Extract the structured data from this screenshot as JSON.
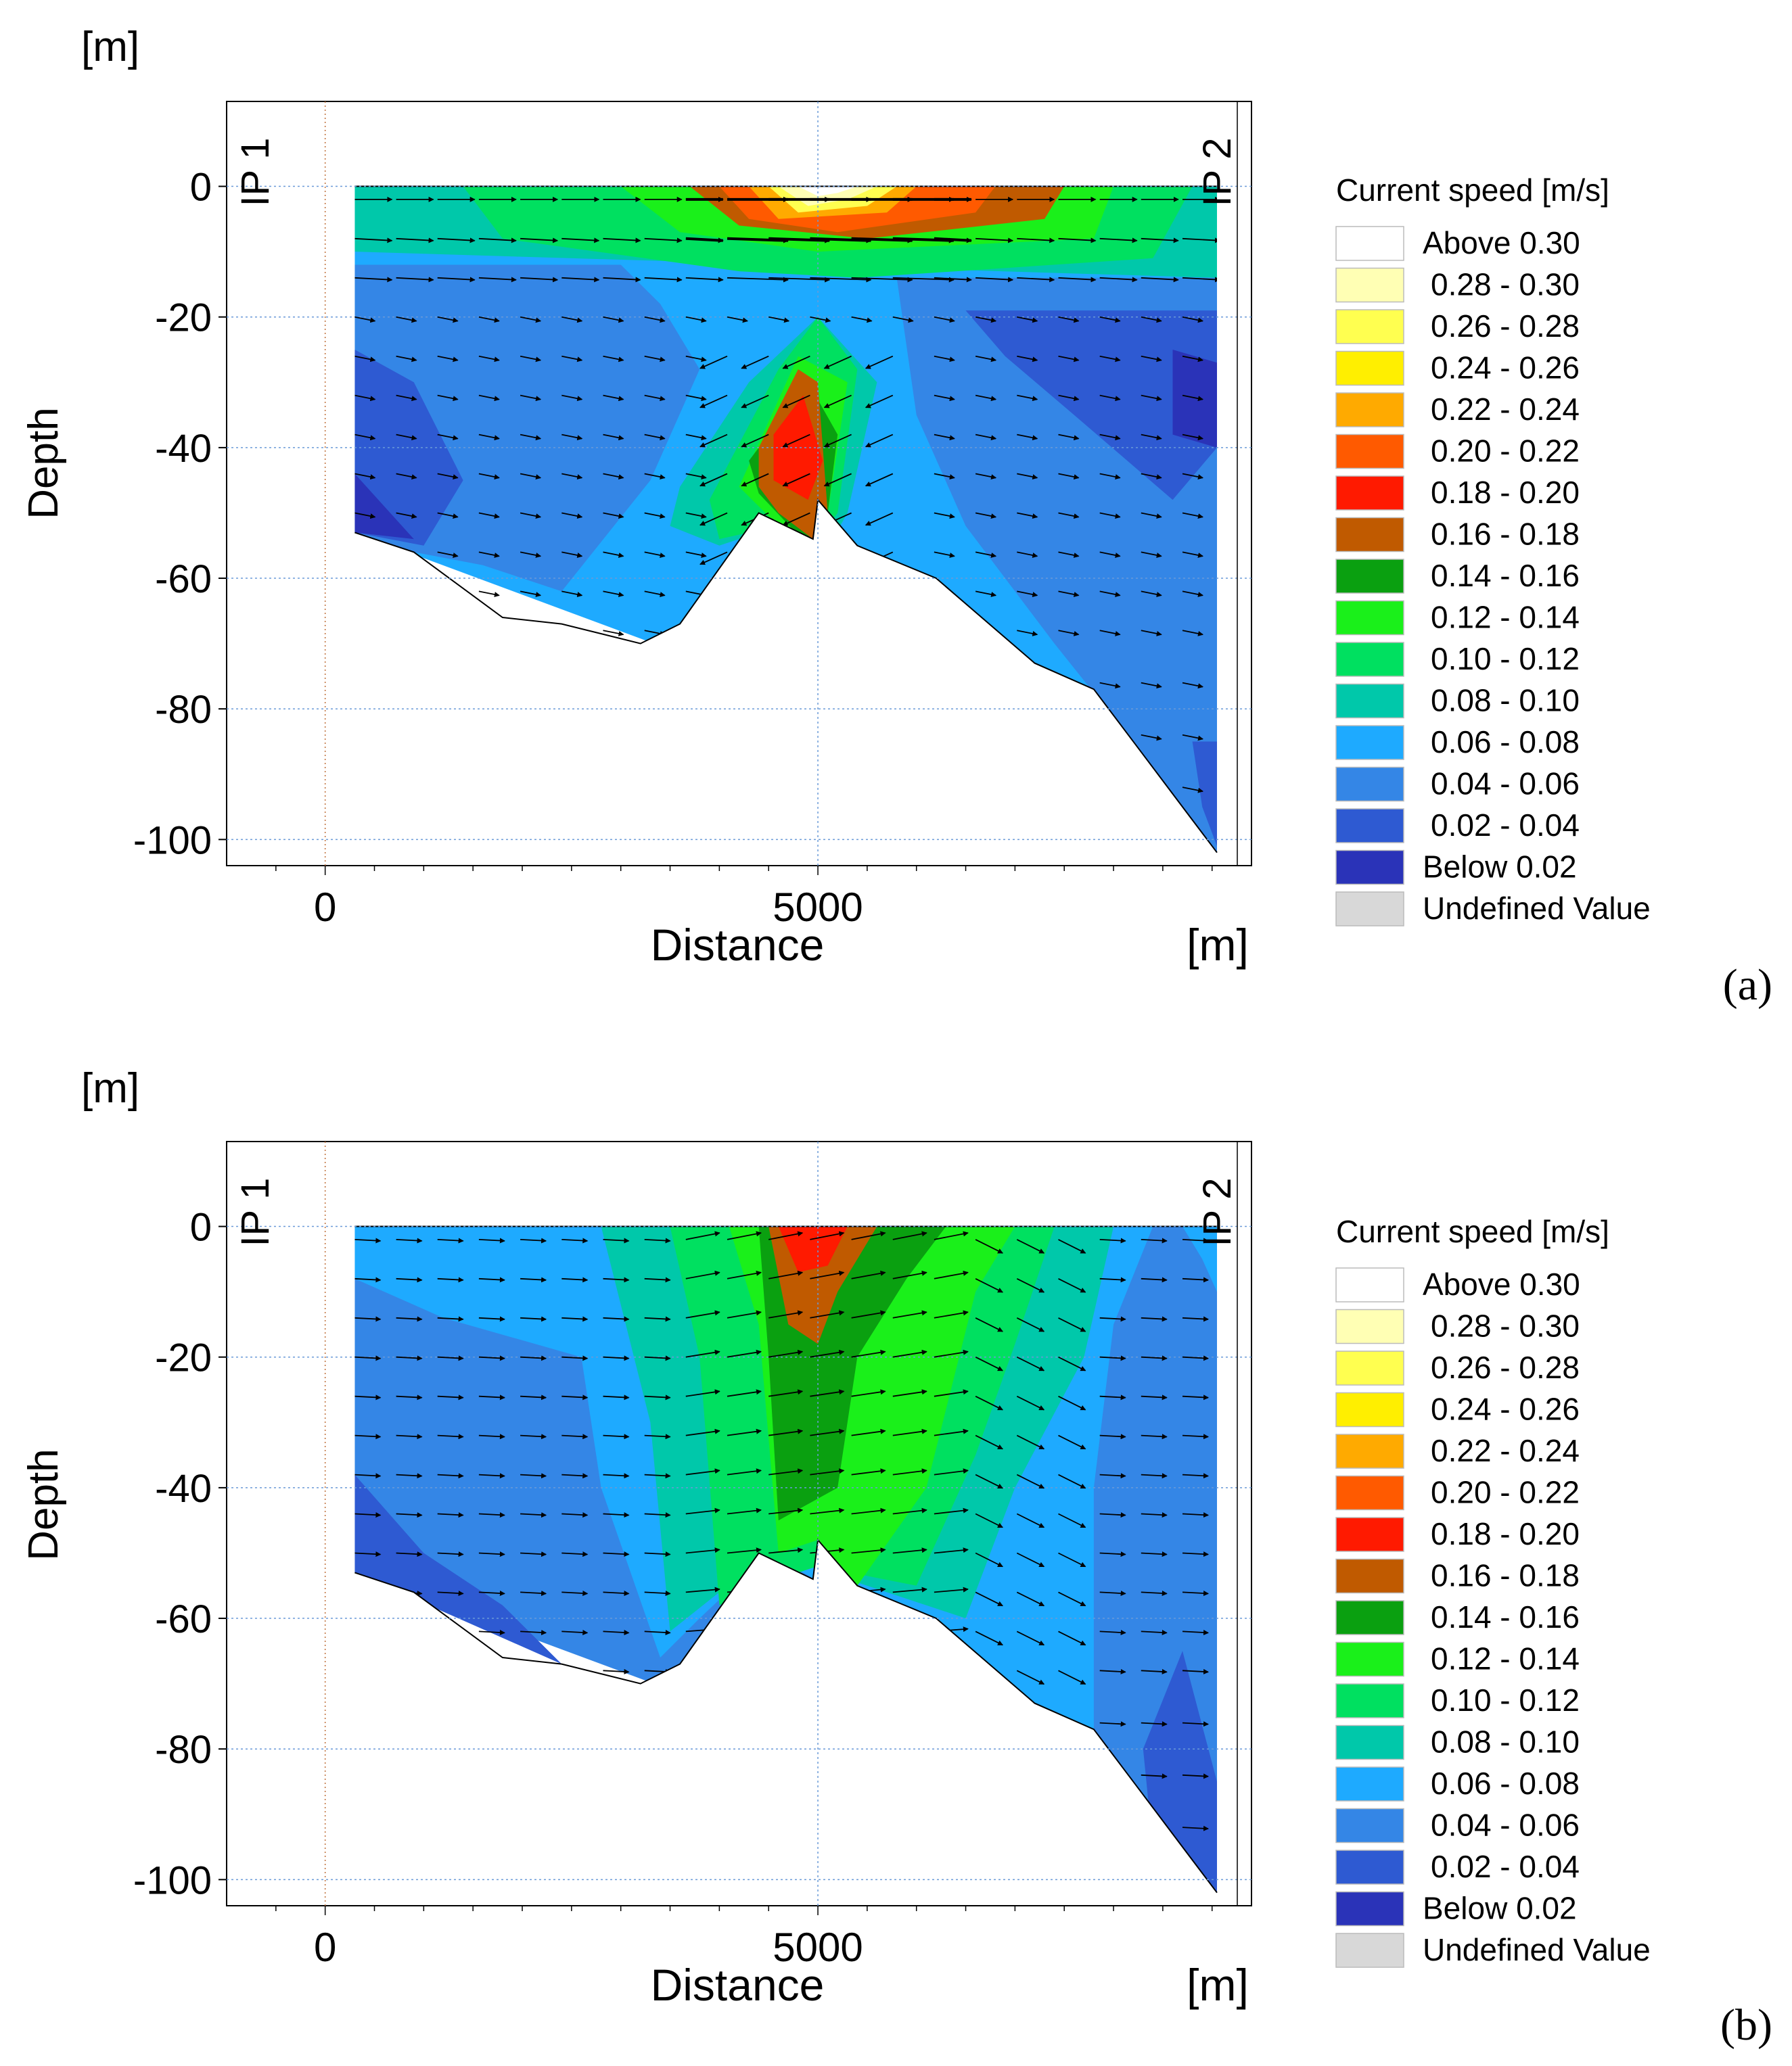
{
  "legend": {
    "title": "Current speed [m/s]",
    "classes": [
      {
        "label": "Above 0.30",
        "color": "#ffffff"
      },
      {
        "label": "0.28 - 0.30",
        "color": "#ffffb4"
      },
      {
        "label": "0.26 - 0.28",
        "color": "#ffff50"
      },
      {
        "label": "0.24 - 0.26",
        "color": "#ffef00"
      },
      {
        "label": "0.22 - 0.24",
        "color": "#ffaa00"
      },
      {
        "label": "0.20 - 0.22",
        "color": "#ff5a00"
      },
      {
        "label": "0.18 - 0.20",
        "color": "#ff1a00"
      },
      {
        "label": "0.16 - 0.18",
        "color": "#c05a00"
      },
      {
        "label": "0.14 - 0.16",
        "color": "#0aa010"
      },
      {
        "label": "0.12 - 0.14",
        "color": "#1af01a"
      },
      {
        "label": "0.10 - 0.12",
        "color": "#00e060"
      },
      {
        "label": "0.08 - 0.10",
        "color": "#00c8aa"
      },
      {
        "label": "0.06 - 0.08",
        "color": "#1eaaff"
      },
      {
        "label": "0.04 - 0.06",
        "color": "#3486e6"
      },
      {
        "label": "0.02 - 0.04",
        "color": "#2e5ad2"
      },
      {
        "label": "Below 0.02",
        "color": "#2a33b8"
      },
      {
        "label": "Undefined Value",
        "color": "#d8d8d8"
      }
    ]
  },
  "chart_data": [
    {
      "type": "heatmap",
      "panel": "(a)",
      "title": "",
      "xlabel": "Distance",
      "ylabel": "Depth",
      "x_unit": "[m]",
      "y_unit": "[m]",
      "xlim": [
        -1000,
        9400
      ],
      "ylim": [
        -104,
        13
      ],
      "x_ticks": [
        0,
        5000
      ],
      "y_ticks": [
        0,
        -20,
        -40,
        -60,
        -80,
        -100
      ],
      "grid": true,
      "annotations": [
        "IP 1",
        "IP 2"
      ],
      "bathymetry": {
        "distance": [
          300,
          300,
          900,
          1800,
          2400,
          3200,
          3600,
          4400,
          4950,
          5000,
          5400,
          6200,
          7200,
          7800,
          8300,
          8700,
          9050,
          9050
        ],
        "depth": [
          0,
          -53,
          -56,
          -66,
          -67,
          -70,
          -67,
          -50,
          -54,
          -48,
          -55,
          -60,
          -73,
          -77,
          -87,
          -95,
          -102,
          0
        ]
      },
      "contours": [
        {
          "class": "0.06 - 0.08",
          "distance": [
            300,
            9050,
            9050,
            300
          ],
          "depth": [
            0,
            0,
            -102,
            -53
          ]
        },
        {
          "class": "0.04 - 0.06",
          "distance": [
            300,
            3000,
            3400,
            3800,
            3300,
            2400,
            1600,
            900,
            300
          ],
          "depth": [
            -12,
            -12,
            -18,
            -28,
            -45,
            -62,
            -58,
            -56,
            -53
          ]
        },
        {
          "class": "0.04 - 0.06",
          "distance": [
            5800,
            9050,
            9050,
            8300,
            7400,
            6500,
            6000
          ],
          "depth": [
            -14,
            -14,
            -102,
            -87,
            -70,
            -52,
            -35
          ]
        },
        {
          "class": "0.02 - 0.04",
          "distance": [
            300,
            900,
            1400,
            1000,
            300
          ],
          "depth": [
            -25,
            -30,
            -45,
            -55,
            -53
          ]
        },
        {
          "class": "0.02 - 0.04",
          "distance": [
            6500,
            9050,
            9050,
            8600,
            7600,
            6900
          ],
          "depth": [
            -19,
            -19,
            -40,
            -48,
            -35,
            -26
          ]
        },
        {
          "class": "Below 0.02",
          "distance": [
            300,
            900,
            300
          ],
          "depth": [
            -44,
            -54,
            -53
          ]
        },
        {
          "class": "Below 0.02",
          "distance": [
            8600,
            9050,
            9050,
            8600
          ],
          "depth": [
            -25,
            -27,
            -40,
            -38
          ]
        },
        {
          "class": "0.02 - 0.04",
          "distance": [
            8800,
            9050,
            9050,
            8900
          ],
          "depth": [
            -85,
            -85,
            -101,
            -95
          ]
        },
        {
          "class": "0.08 - 0.10",
          "distance": [
            300,
            9050,
            9050,
            300
          ],
          "depth": [
            0,
            0,
            -14,
            -10
          ]
        },
        {
          "class": "0.08 - 0.10",
          "distance": [
            3600,
            4300,
            5000,
            5600,
            5300,
            5000,
            4600,
            4000,
            3500
          ],
          "depth": [
            -46,
            -30,
            -20,
            -30,
            -50,
            -58,
            -52,
            -55,
            -52
          ]
        },
        {
          "class": "0.10 - 0.12",
          "distance": [
            1400,
            8800,
            8400,
            5400,
            4200,
            1800
          ],
          "depth": [
            0,
            0,
            -11,
            -14,
            -13,
            -8
          ]
        },
        {
          "class": "0.10 - 0.12",
          "distance": [
            3900,
            4600,
            5000,
            5400,
            5200,
            4950,
            4600,
            4000
          ],
          "depth": [
            -48,
            -28,
            -20,
            -28,
            -50,
            -55,
            -52,
            -54
          ]
        },
        {
          "class": "0.12 - 0.14",
          "distance": [
            3000,
            8000,
            7800,
            5000,
            3600
          ],
          "depth": [
            0,
            0,
            -8,
            -10,
            -7
          ]
        },
        {
          "class": "0.12 - 0.14",
          "distance": [
            4200,
            4800,
            5300,
            5100,
            4900,
            4600
          ],
          "depth": [
            -46,
            -26,
            -30,
            -50,
            -55,
            -52
          ]
        },
        {
          "class": "0.14 - 0.16",
          "distance": [
            4300,
            4900,
            5200,
            5100,
            4900,
            4400
          ],
          "depth": [
            -42,
            -30,
            -38,
            -50,
            -55,
            -47
          ]
        },
        {
          "class": "0.16 - 0.18",
          "distance": [
            3700,
            7500,
            7300,
            5500,
            4200
          ],
          "depth": [
            0,
            0,
            -5,
            -8,
            -6
          ]
        },
        {
          "class": "0.16 - 0.18",
          "distance": [
            4400,
            4800,
            5000,
            5100,
            4950,
            4600,
            4400
          ],
          "depth": [
            -40,
            -28,
            -30,
            -50,
            -54,
            -50,
            -46
          ]
        },
        {
          "class": "0.18 - 0.20",
          "distance": [
            4550,
            4850,
            5050,
            4900,
            4550
          ],
          "depth": [
            -38,
            -32,
            -42,
            -48,
            -45
          ]
        },
        {
          "class": "0.20 - 0.22",
          "distance": [
            4000,
            6800,
            6600,
            5200,
            4300
          ],
          "depth": [
            0,
            0,
            -4,
            -7,
            -5
          ]
        },
        {
          "class": "0.22 - 0.24",
          "distance": [
            4300,
            6000,
            5700,
            4600
          ],
          "depth": [
            0,
            0,
            -4,
            -5
          ]
        },
        {
          "class": "0.26 - 0.28",
          "distance": [
            4500,
            5800,
            5500,
            4800
          ],
          "depth": [
            0,
            0,
            -3,
            -4
          ]
        },
        {
          "class": "0.28 - 0.30",
          "distance": [
            4600,
            5600,
            5300,
            4900
          ],
          "depth": [
            0,
            0,
            -2,
            -3
          ]
        },
        {
          "class": "Above 0.30",
          "distance": [
            4800,
            5400,
            5200,
            5000
          ],
          "depth": [
            0,
            0,
            -1,
            -1.5
          ]
        }
      ]
    },
    {
      "type": "heatmap",
      "panel": "(b)",
      "title": "",
      "xlabel": "Distance",
      "ylabel": "Depth",
      "x_unit": "[m]",
      "y_unit": "[m]",
      "xlim": [
        -1000,
        9400
      ],
      "ylim": [
        -104,
        13
      ],
      "x_ticks": [
        0,
        5000
      ],
      "y_ticks": [
        0,
        -20,
        -40,
        -60,
        -80,
        -100
      ],
      "grid": true,
      "annotations": [
        "IP 1",
        "IP 2"
      ],
      "bathymetry": {
        "distance": [
          300,
          300,
          900,
          1800,
          2400,
          3200,
          3600,
          4400,
          4950,
          5000,
          5400,
          6200,
          7200,
          7800,
          8300,
          8700,
          9050,
          9050
        ],
        "depth": [
          0,
          -53,
          -56,
          -66,
          -67,
          -70,
          -67,
          -50,
          -54,
          -48,
          -55,
          -60,
          -73,
          -77,
          -87,
          -95,
          -102,
          0
        ]
      },
      "contours": [
        {
          "class": "0.04 - 0.06",
          "distance": [
            300,
            9050,
            9050,
            300
          ],
          "depth": [
            0,
            0,
            -102,
            -53
          ]
        },
        {
          "class": "0.02 - 0.04",
          "distance": [
            300,
            1000,
            1800,
            2400,
            300
          ],
          "depth": [
            -38,
            -50,
            -58,
            -67,
            -53
          ]
        },
        {
          "class": "0.02 - 0.04",
          "distance": [
            8300,
            8700,
            9050,
            9050,
            8400
          ],
          "depth": [
            -80,
            -65,
            -85,
            -102,
            -95
          ]
        },
        {
          "class": "0.06 - 0.08",
          "distance": [
            300,
            8400,
            8000,
            7800,
            7800,
            7200,
            4500,
            3800,
            3400,
            2800,
            2600,
            1200,
            300
          ],
          "depth": [
            0,
            0,
            -15,
            -40,
            -77,
            -73,
            -50,
            -60,
            -66,
            -40,
            -20,
            -14,
            -8
          ]
        },
        {
          "class": "0.06 - 0.08",
          "distance": [
            8700,
            9050,
            9050,
            8900
          ],
          "depth": [
            0,
            0,
            -10,
            -5
          ]
        },
        {
          "class": "0.08 - 0.10",
          "distance": [
            2800,
            8000,
            7700,
            7000,
            6500,
            4500,
            3500,
            3300
          ],
          "depth": [
            0,
            0,
            -20,
            -40,
            -60,
            -50,
            -62,
            -30
          ]
        },
        {
          "class": "0.10 - 0.12",
          "distance": [
            3500,
            7400,
            7000,
            6600,
            6000,
            5000,
            4400,
            4000,
            3800
          ],
          "depth": [
            0,
            0,
            -18,
            -35,
            -55,
            -52,
            -55,
            -58,
            -20
          ]
        },
        {
          "class": "0.12 - 0.14",
          "distance": [
            4100,
            7000,
            6600,
            6100,
            5400,
            5000,
            4600,
            4400
          ],
          "depth": [
            0,
            0,
            -10,
            -40,
            -55,
            -48,
            -50,
            -15
          ]
        },
        {
          "class": "0.14 - 0.16",
          "distance": [
            4400,
            6300,
            5900,
            5400,
            5200,
            4600,
            4500
          ],
          "depth": [
            0,
            0,
            -8,
            -20,
            -40,
            -45,
            -20
          ]
        },
        {
          "class": "0.16 - 0.18",
          "distance": [
            4500,
            5600,
            5200,
            5000,
            4700
          ],
          "depth": [
            0,
            0,
            -10,
            -18,
            -15
          ]
        },
        {
          "class": "0.18 - 0.20",
          "distance": [
            4600,
            5300,
            5100,
            4800
          ],
          "depth": [
            0,
            0,
            -6,
            -7
          ]
        }
      ]
    }
  ],
  "panels": [
    {
      "tag": "(a)"
    },
    {
      "tag": "(b)"
    }
  ]
}
